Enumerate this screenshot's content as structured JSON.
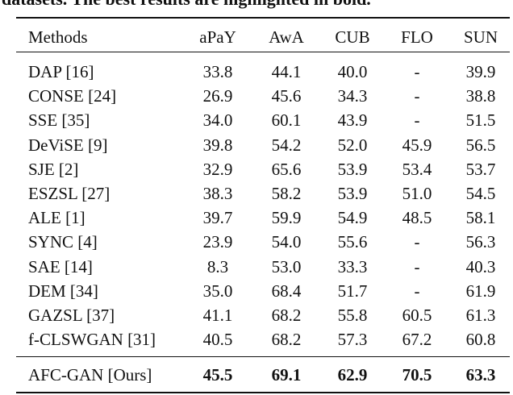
{
  "caption": "datasets. The best results are highlighted in bold.",
  "table": {
    "header": [
      "Methods",
      "aPaY",
      "AwA",
      "CUB",
      "FLO",
      "SUN"
    ],
    "rows": [
      [
        "DAP [16]",
        "33.8",
        "44.1",
        "40.0",
        "-",
        "39.9"
      ],
      [
        "CONSE [24]",
        "26.9",
        "45.6",
        "34.3",
        "-",
        "38.8"
      ],
      [
        "SSE [35]",
        "34.0",
        "60.1",
        "43.9",
        "-",
        "51.5"
      ],
      [
        "DeViSE [9]",
        "39.8",
        "54.2",
        "52.0",
        "45.9",
        "56.5"
      ],
      [
        "SJE [2]",
        "32.9",
        "65.6",
        "53.9",
        "53.4",
        "53.7"
      ],
      [
        "ESZSL [27]",
        "38.3",
        "58.2",
        "53.9",
        "51.0",
        "54.5"
      ],
      [
        "ALE [1]",
        "39.7",
        "59.9",
        "54.9",
        "48.5",
        "58.1"
      ],
      [
        "SYNC [4]",
        "23.9",
        "54.0",
        "55.6",
        "-",
        "56.3"
      ],
      [
        "SAE [14]",
        "8.3",
        "53.0",
        "33.3",
        "-",
        "40.3"
      ],
      [
        "DEM [34]",
        "35.0",
        "68.4",
        "51.7",
        "-",
        "61.9"
      ],
      [
        "GAZSL [37]",
        "41.1",
        "68.2",
        "55.8",
        "60.5",
        "61.3"
      ],
      [
        "f-CLSWGAN [31]",
        "40.5",
        "68.2",
        "57.3",
        "67.2",
        "60.8"
      ]
    ],
    "final_row": [
      "AFC-GAN [Ours]",
      "45.5",
      "69.1",
      "62.9",
      "70.5",
      "63.3"
    ]
  }
}
